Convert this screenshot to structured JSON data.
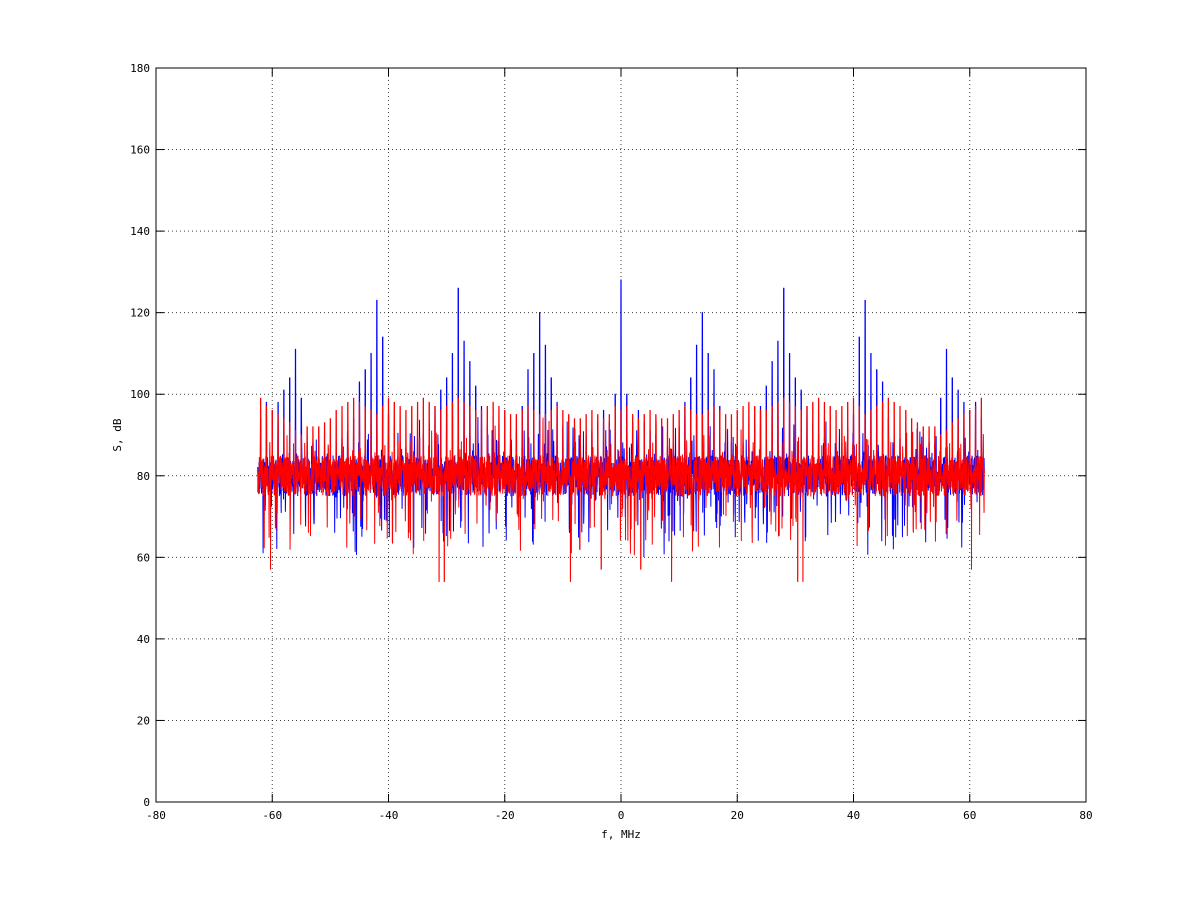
{
  "chart_data": {
    "type": "line",
    "title": "",
    "xlabel": "f, MHz",
    "ylabel": "S, dB",
    "xlim": [
      -80,
      80
    ],
    "ylim": [
      0,
      180
    ],
    "xticks": [
      -80,
      -60,
      -40,
      -20,
      0,
      20,
      40,
      60,
      80
    ],
    "yticks": [
      0,
      20,
      40,
      60,
      80,
      100,
      120,
      140,
      160,
      180
    ],
    "grid": true,
    "x_range": [
      -62.5,
      62.5
    ],
    "harmonic_spacing": 1.0,
    "series": [
      {
        "color": "#0000ff",
        "baseline": 80,
        "peaks": [
          {
            "x": -62,
            "y": 94
          },
          {
            "x": -61,
            "y": 98
          },
          {
            "x": -60,
            "y": 96
          },
          {
            "x": -59,
            "y": 98
          },
          {
            "x": -58,
            "y": 101
          },
          {
            "x": -57,
            "y": 104
          },
          {
            "x": -56,
            "y": 111
          },
          {
            "x": -55,
            "y": 99
          },
          {
            "x": -54,
            "y": 88
          },
          {
            "x": -53,
            "y": 88
          },
          {
            "x": -52,
            "y": 87
          },
          {
            "x": -51,
            "y": 86
          },
          {
            "x": -50,
            "y": 85
          },
          {
            "x": -49,
            "y": 88
          },
          {
            "x": -48,
            "y": 89
          },
          {
            "x": -47,
            "y": 89
          },
          {
            "x": -46,
            "y": 94
          },
          {
            "x": -45,
            "y": 103
          },
          {
            "x": -44,
            "y": 106
          },
          {
            "x": -43,
            "y": 110
          },
          {
            "x": -42,
            "y": 123
          },
          {
            "x": -41,
            "y": 114
          },
          {
            "x": -40,
            "y": 95
          },
          {
            "x": -39,
            "y": 92
          },
          {
            "x": -38,
            "y": 88
          },
          {
            "x": -37,
            "y": 87
          },
          {
            "x": -36,
            "y": 88
          },
          {
            "x": -35,
            "y": 89
          },
          {
            "x": -34,
            "y": 90
          },
          {
            "x": -33,
            "y": 93
          },
          {
            "x": -32,
            "y": 97
          },
          {
            "x": -31,
            "y": 101
          },
          {
            "x": -30,
            "y": 104
          },
          {
            "x": -29,
            "y": 110
          },
          {
            "x": -28,
            "y": 126
          },
          {
            "x": -27,
            "y": 113
          },
          {
            "x": -26,
            "y": 108
          },
          {
            "x": -25,
            "y": 102
          },
          {
            "x": -24,
            "y": 97
          },
          {
            "x": -23,
            "y": 92
          },
          {
            "x": -22,
            "y": 89
          },
          {
            "x": -21,
            "y": 88
          },
          {
            "x": -20,
            "y": 87
          },
          {
            "x": -19,
            "y": 88
          },
          {
            "x": -18,
            "y": 91
          },
          {
            "x": -17,
            "y": 97
          },
          {
            "x": -16,
            "y": 106
          },
          {
            "x": -15,
            "y": 110
          },
          {
            "x": -14,
            "y": 120
          },
          {
            "x": -13,
            "y": 112
          },
          {
            "x": -12,
            "y": 104
          },
          {
            "x": -11,
            "y": 98
          },
          {
            "x": -10,
            "y": 92
          },
          {
            "x": -9,
            "y": 88
          },
          {
            "x": -8,
            "y": 87
          },
          {
            "x": -7,
            "y": 89
          },
          {
            "x": -6,
            "y": 90
          },
          {
            "x": -5,
            "y": 91
          },
          {
            "x": -4,
            "y": 93
          },
          {
            "x": -3,
            "y": 96
          },
          {
            "x": -2,
            "y": 93
          },
          {
            "x": -1,
            "y": 100
          },
          {
            "x": 0,
            "y": 128
          },
          {
            "x": 1,
            "y": 100
          },
          {
            "x": 2,
            "y": 93
          },
          {
            "x": 3,
            "y": 96
          },
          {
            "x": 4,
            "y": 93
          },
          {
            "x": 5,
            "y": 91
          },
          {
            "x": 6,
            "y": 90
          },
          {
            "x": 7,
            "y": 89
          },
          {
            "x": 8,
            "y": 87
          },
          {
            "x": 9,
            "y": 88
          },
          {
            "x": 10,
            "y": 92
          },
          {
            "x": 11,
            "y": 98
          },
          {
            "x": 12,
            "y": 104
          },
          {
            "x": 13,
            "y": 112
          },
          {
            "x": 14,
            "y": 120
          },
          {
            "x": 15,
            "y": 110
          },
          {
            "x": 16,
            "y": 106
          },
          {
            "x": 17,
            "y": 97
          },
          {
            "x": 18,
            "y": 91
          },
          {
            "x": 19,
            "y": 88
          },
          {
            "x": 20,
            "y": 87
          },
          {
            "x": 21,
            "y": 88
          },
          {
            "x": 22,
            "y": 89
          },
          {
            "x": 23,
            "y": 92
          },
          {
            "x": 24,
            "y": 97
          },
          {
            "x": 25,
            "y": 102
          },
          {
            "x": 26,
            "y": 108
          },
          {
            "x": 27,
            "y": 113
          },
          {
            "x": 28,
            "y": 126
          },
          {
            "x": 29,
            "y": 110
          },
          {
            "x": 30,
            "y": 104
          },
          {
            "x": 31,
            "y": 101
          },
          {
            "x": 32,
            "y": 97
          },
          {
            "x": 33,
            "y": 93
          },
          {
            "x": 34,
            "y": 90
          },
          {
            "x": 35,
            "y": 89
          },
          {
            "x": 36,
            "y": 88
          },
          {
            "x": 37,
            "y": 87
          },
          {
            "x": 38,
            "y": 88
          },
          {
            "x": 39,
            "y": 92
          },
          {
            "x": 40,
            "y": 95
          },
          {
            "x": 41,
            "y": 114
          },
          {
            "x": 42,
            "y": 123
          },
          {
            "x": 43,
            "y": 110
          },
          {
            "x": 44,
            "y": 106
          },
          {
            "x": 45,
            "y": 103
          },
          {
            "x": 46,
            "y": 94
          },
          {
            "x": 47,
            "y": 89
          },
          {
            "x": 48,
            "y": 89
          },
          {
            "x": 49,
            "y": 88
          },
          {
            "x": 50,
            "y": 85
          },
          {
            "x": 51,
            "y": 86
          },
          {
            "x": 52,
            "y": 87
          },
          {
            "x": 53,
            "y": 88
          },
          {
            "x": 54,
            "y": 88
          },
          {
            "x": 55,
            "y": 99
          },
          {
            "x": 56,
            "y": 111
          },
          {
            "x": 57,
            "y": 104
          },
          {
            "x": 58,
            "y": 101
          },
          {
            "x": 59,
            "y": 98
          },
          {
            "x": 60,
            "y": 96
          },
          {
            "x": 61,
            "y": 98
          },
          {
            "x": 62,
            "y": 94
          }
        ]
      },
      {
        "color": "#ff0000",
        "baseline": 80,
        "peaks": [
          {
            "x": -62,
            "y": 99
          },
          {
            "x": -61,
            "y": 97
          },
          {
            "x": -60,
            "y": 96
          },
          {
            "x": -59,
            "y": 95
          },
          {
            "x": -58,
            "y": 94
          },
          {
            "x": -57,
            "y": 93
          },
          {
            "x": -56,
            "y": 91
          },
          {
            "x": -55,
            "y": 90
          },
          {
            "x": -54,
            "y": 92
          },
          {
            "x": -53,
            "y": 92
          },
          {
            "x": -52,
            "y": 92
          },
          {
            "x": -51,
            "y": 93
          },
          {
            "x": -50,
            "y": 94
          },
          {
            "x": -49,
            "y": 96
          },
          {
            "x": -48,
            "y": 97
          },
          {
            "x": -47,
            "y": 98
          },
          {
            "x": -46,
            "y": 99
          },
          {
            "x": -45,
            "y": 98
          },
          {
            "x": -44,
            "y": 97
          },
          {
            "x": -43,
            "y": 96
          },
          {
            "x": -42,
            "y": 95
          },
          {
            "x": -41,
            "y": 97
          },
          {
            "x": -40,
            "y": 99
          },
          {
            "x": -39,
            "y": 98
          },
          {
            "x": -38,
            "y": 97
          },
          {
            "x": -37,
            "y": 96
          },
          {
            "x": -36,
            "y": 97
          },
          {
            "x": -35,
            "y": 98
          },
          {
            "x": -34,
            "y": 99
          },
          {
            "x": -33,
            "y": 98
          },
          {
            "x": -32,
            "y": 97
          },
          {
            "x": -31,
            "y": 96
          },
          {
            "x": -30,
            "y": 97
          },
          {
            "x": -29,
            "y": 98
          },
          {
            "x": -28,
            "y": 99
          },
          {
            "x": -27,
            "y": 98
          },
          {
            "x": -26,
            "y": 97
          },
          {
            "x": -25,
            "y": 96
          },
          {
            "x": -24,
            "y": 96
          },
          {
            "x": -23,
            "y": 97
          },
          {
            "x": -22,
            "y": 98
          },
          {
            "x": -21,
            "y": 97
          },
          {
            "x": -20,
            "y": 96
          },
          {
            "x": -19,
            "y": 95
          },
          {
            "x": -18,
            "y": 95
          },
          {
            "x": -17,
            "y": 96
          },
          {
            "x": -16,
            "y": 97
          },
          {
            "x": -15,
            "y": 96
          },
          {
            "x": -14,
            "y": 95
          },
          {
            "x": -13,
            "y": 95
          },
          {
            "x": -12,
            "y": 96
          },
          {
            "x": -11,
            "y": 97
          },
          {
            "x": -10,
            "y": 96
          },
          {
            "x": -9,
            "y": 95
          },
          {
            "x": -8,
            "y": 94
          },
          {
            "x": -7,
            "y": 94
          },
          {
            "x": -6,
            "y": 95
          },
          {
            "x": -5,
            "y": 96
          },
          {
            "x": -4,
            "y": 95
          },
          {
            "x": -3,
            "y": 94
          },
          {
            "x": -2,
            "y": 95
          },
          {
            "x": -1,
            "y": 97
          },
          {
            "x": 0,
            "y": 96
          },
          {
            "x": 1,
            "y": 97
          },
          {
            "x": 2,
            "y": 95
          },
          {
            "x": 3,
            "y": 94
          },
          {
            "x": 4,
            "y": 95
          },
          {
            "x": 5,
            "y": 96
          },
          {
            "x": 6,
            "y": 95
          },
          {
            "x": 7,
            "y": 94
          },
          {
            "x": 8,
            "y": 94
          },
          {
            "x": 9,
            "y": 95
          },
          {
            "x": 10,
            "y": 96
          },
          {
            "x": 11,
            "y": 97
          },
          {
            "x": 12,
            "y": 96
          },
          {
            "x": 13,
            "y": 95
          },
          {
            "x": 14,
            "y": 95
          },
          {
            "x": 15,
            "y": 96
          },
          {
            "x": 16,
            "y": 97
          },
          {
            "x": 17,
            "y": 96
          },
          {
            "x": 18,
            "y": 95
          },
          {
            "x": 19,
            "y": 95
          },
          {
            "x": 20,
            "y": 96
          },
          {
            "x": 21,
            "y": 97
          },
          {
            "x": 22,
            "y": 98
          },
          {
            "x": 23,
            "y": 97
          },
          {
            "x": 24,
            "y": 96
          },
          {
            "x": 25,
            "y": 96
          },
          {
            "x": 26,
            "y": 97
          },
          {
            "x": 27,
            "y": 98
          },
          {
            "x": 28,
            "y": 99
          },
          {
            "x": 29,
            "y": 98
          },
          {
            "x": 30,
            "y": 97
          },
          {
            "x": 31,
            "y": 96
          },
          {
            "x": 32,
            "y": 97
          },
          {
            "x": 33,
            "y": 98
          },
          {
            "x": 34,
            "y": 99
          },
          {
            "x": 35,
            "y": 98
          },
          {
            "x": 36,
            "y": 97
          },
          {
            "x": 37,
            "y": 96
          },
          {
            "x": 38,
            "y": 97
          },
          {
            "x": 39,
            "y": 98
          },
          {
            "x": 40,
            "y": 99
          },
          {
            "x": 41,
            "y": 97
          },
          {
            "x": 42,
            "y": 95
          },
          {
            "x": 43,
            "y": 96
          },
          {
            "x": 44,
            "y": 97
          },
          {
            "x": 45,
            "y": 98
          },
          {
            "x": 46,
            "y": 99
          },
          {
            "x": 47,
            "y": 98
          },
          {
            "x": 48,
            "y": 97
          },
          {
            "x": 49,
            "y": 96
          },
          {
            "x": 50,
            "y": 94
          },
          {
            "x": 51,
            "y": 93
          },
          {
            "x": 52,
            "y": 92
          },
          {
            "x": 53,
            "y": 92
          },
          {
            "x": 54,
            "y": 92
          },
          {
            "x": 55,
            "y": 90
          },
          {
            "x": 56,
            "y": 91
          },
          {
            "x": 57,
            "y": 93
          },
          {
            "x": 58,
            "y": 94
          },
          {
            "x": 59,
            "y": 95
          },
          {
            "x": 60,
            "y": 96
          },
          {
            "x": 61,
            "y": 97
          },
          {
            "x": 62,
            "y": 99
          }
        ],
        "dips": [
          {
            "x": -60.3,
            "y": 57
          },
          {
            "x": -31.3,
            "y": 54
          },
          {
            "x": -30.4,
            "y": 54
          },
          {
            "x": -8.7,
            "y": 54
          },
          {
            "x": -3.4,
            "y": 57
          },
          {
            "x": 3.4,
            "y": 57
          },
          {
            "x": 8.7,
            "y": 54
          },
          {
            "x": 30.4,
            "y": 54
          },
          {
            "x": 31.3,
            "y": 54
          },
          {
            "x": 60.3,
            "y": 57
          }
        ]
      }
    ]
  }
}
